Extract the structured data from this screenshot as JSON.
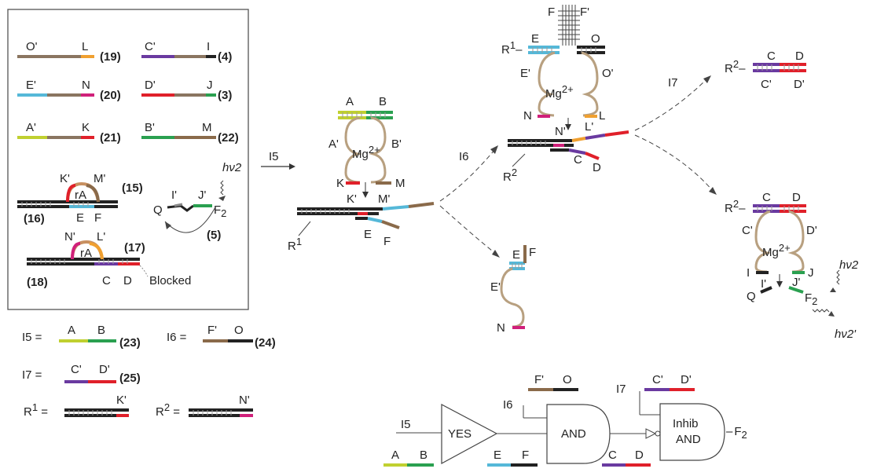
{
  "inventory": {
    "strands": [
      {
        "left": "O'",
        "right": "L",
        "num": "19"
      },
      {
        "left": "C'",
        "right": "I",
        "num": "4"
      },
      {
        "left": "E'",
        "right": "N",
        "num": "20"
      },
      {
        "left": "D'",
        "right": "J",
        "num": "3"
      },
      {
        "left": "A'",
        "right": "K",
        "num": "21"
      },
      {
        "left": "B'",
        "right": "M",
        "num": "22"
      }
    ],
    "gate15": {
      "k": "K'",
      "m": "M'",
      "ra": "rA",
      "e": "E",
      "f": "F",
      "num_top": "15",
      "num_bot": "16"
    },
    "gate17": {
      "n": "N'",
      "l": "L'",
      "ra": "rA",
      "c": "C",
      "d": "D",
      "num_top": "17",
      "num_bot": "18",
      "blocked": "Blocked"
    },
    "beacon": {
      "i": "I'",
      "j": "J'",
      "q": "Q",
      "f": "F",
      "f_sub": "2",
      "hv": "hν2",
      "num": "5"
    }
  },
  "inputs": {
    "i5": {
      "name": "I5 =",
      "a": "A",
      "b": "B",
      "num": "23"
    },
    "i6": {
      "name": "I6 =",
      "a": "F'",
      "b": "O",
      "num": "24"
    },
    "i7": {
      "name": "I7 =",
      "a": "C'",
      "b": "D'",
      "num": "25"
    },
    "r1": {
      "name": "R",
      "sup": "1",
      "eq": " =",
      "label": "K'"
    },
    "r2": {
      "name": "R",
      "sup": "2",
      "eq": " =",
      "label": "N'"
    }
  },
  "flow": {
    "i5": "I5",
    "i6": "I6",
    "i7": "I7",
    "mg": "Mg",
    "mg_sup": "2+",
    "s1": {
      "a": "A",
      "b": "B",
      "a2": "A'",
      "b2": "B'",
      "k": "K",
      "m": "M",
      "k2": "K'",
      "m2": "M'",
      "e": "E",
      "f": "F",
      "r": "R",
      "r_sup": "1"
    },
    "s2": {
      "f": "F",
      "f2": "F'",
      "r": "R",
      "r_sup": "1",
      "e": "E",
      "o": "O",
      "e2": "E'",
      "o2": "O'",
      "n": "N",
      "l": "L",
      "n2": "N'",
      "l2": "L'",
      "c": "C",
      "d": "D",
      "r2": "R",
      "r2_sup": "2"
    },
    "s3": {
      "e": "E",
      "f": "F",
      "e2": "E'",
      "n": "N"
    },
    "s4": {
      "r": "R",
      "r_sup": "2",
      "c": "C",
      "d": "D",
      "c2": "C'",
      "d2": "D'"
    },
    "s5": {
      "r": "R",
      "r_sup": "2",
      "c": "C",
      "d": "D",
      "c2": "C'",
      "d2": "D'",
      "i": "I",
      "j": "J",
      "i2": "I'",
      "j2": "J'",
      "q": "Q",
      "f": "F",
      "f_sub": "2",
      "hv": "hν2",
      "hv2": "hν2'"
    }
  },
  "logic": {
    "i5": "I5",
    "i6": "I6",
    "i7": "I7",
    "yes": "YES",
    "and": "AND",
    "inhib": "Inhib",
    "inhib2": "AND",
    "a": "A",
    "b": "B",
    "e": "E",
    "f": "F",
    "c": "C",
    "d": "D",
    "f2": "F'",
    "o": "O",
    "c2": "C'",
    "d2": "D'",
    "out": "F",
    "out_sub": "2",
    "dash": "–"
  },
  "colors": {
    "black": "#222222",
    "brown": "#8a6a4a",
    "orange": "#f0a030",
    "purple": "#6a3aa0",
    "cyan": "#55b8d8",
    "magenta": "#d0207a",
    "red": "#e0202a",
    "lime": "#c0d030",
    "green": "#2aa050",
    "tan": "#b8a080"
  }
}
